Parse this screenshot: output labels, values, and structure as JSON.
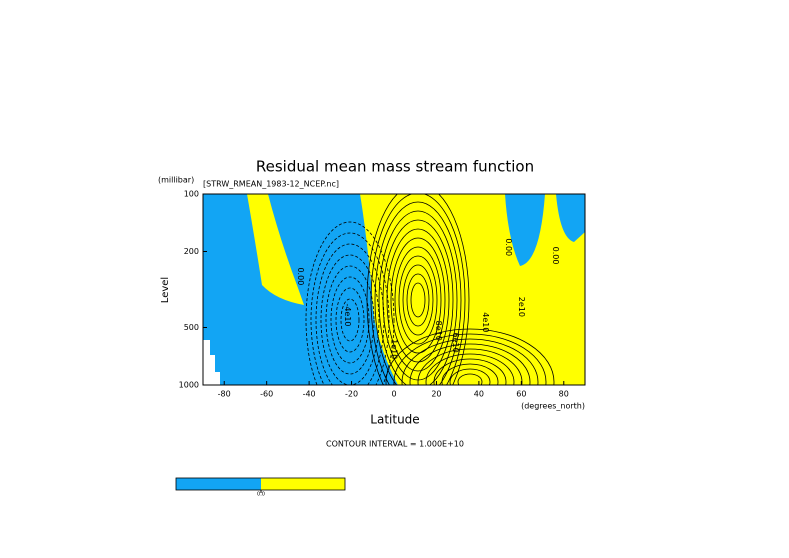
{
  "chart_data": {
    "type": "contour",
    "title": "Residual mean mass stream function",
    "subtitle": "[STRW_RMEAN_1983-12_NCEP.nc]",
    "xlabel": "Latitude",
    "xunit": "(degrees_north)",
    "ylabel": "Level",
    "yunit": "(millibar)",
    "xlim": [
      -90,
      90
    ],
    "xticks": [
      -80,
      -60,
      -40,
      -20,
      0,
      20,
      40,
      60,
      80
    ],
    "ylim": [
      1000,
      100
    ],
    "yticks": [
      100,
      200,
      500,
      1000
    ],
    "ylog": true,
    "negative_color": "#12a5f4",
    "positive_color": "#ffff00",
    "contour_labels": [
      {
        "text": "0.00",
        "x": -44,
        "y": 270
      },
      {
        "text": "-4e10",
        "x": -22,
        "y": 430
      },
      {
        "text": "0.00",
        "x": 54,
        "y": 190
      },
      {
        "text": "0.00",
        "x": 76,
        "y": 210
      },
      {
        "text": "2e10",
        "x": 60,
        "y": 390
      },
      {
        "text": "4e10",
        "x": 43,
        "y": 470
      },
      {
        "text": "6e10",
        "x": 29,
        "y": 600
      },
      {
        "text": "8e10",
        "x": 21,
        "y": 520
      },
      {
        "text": "1e10",
        "x": 0,
        "y": 650
      }
    ],
    "note": "CONTOUR INTERVAL = 1.000E+10",
    "colorbar": {
      "ticks": [
        {
          "value": 0,
          "label": "0.0"
        }
      ]
    }
  }
}
